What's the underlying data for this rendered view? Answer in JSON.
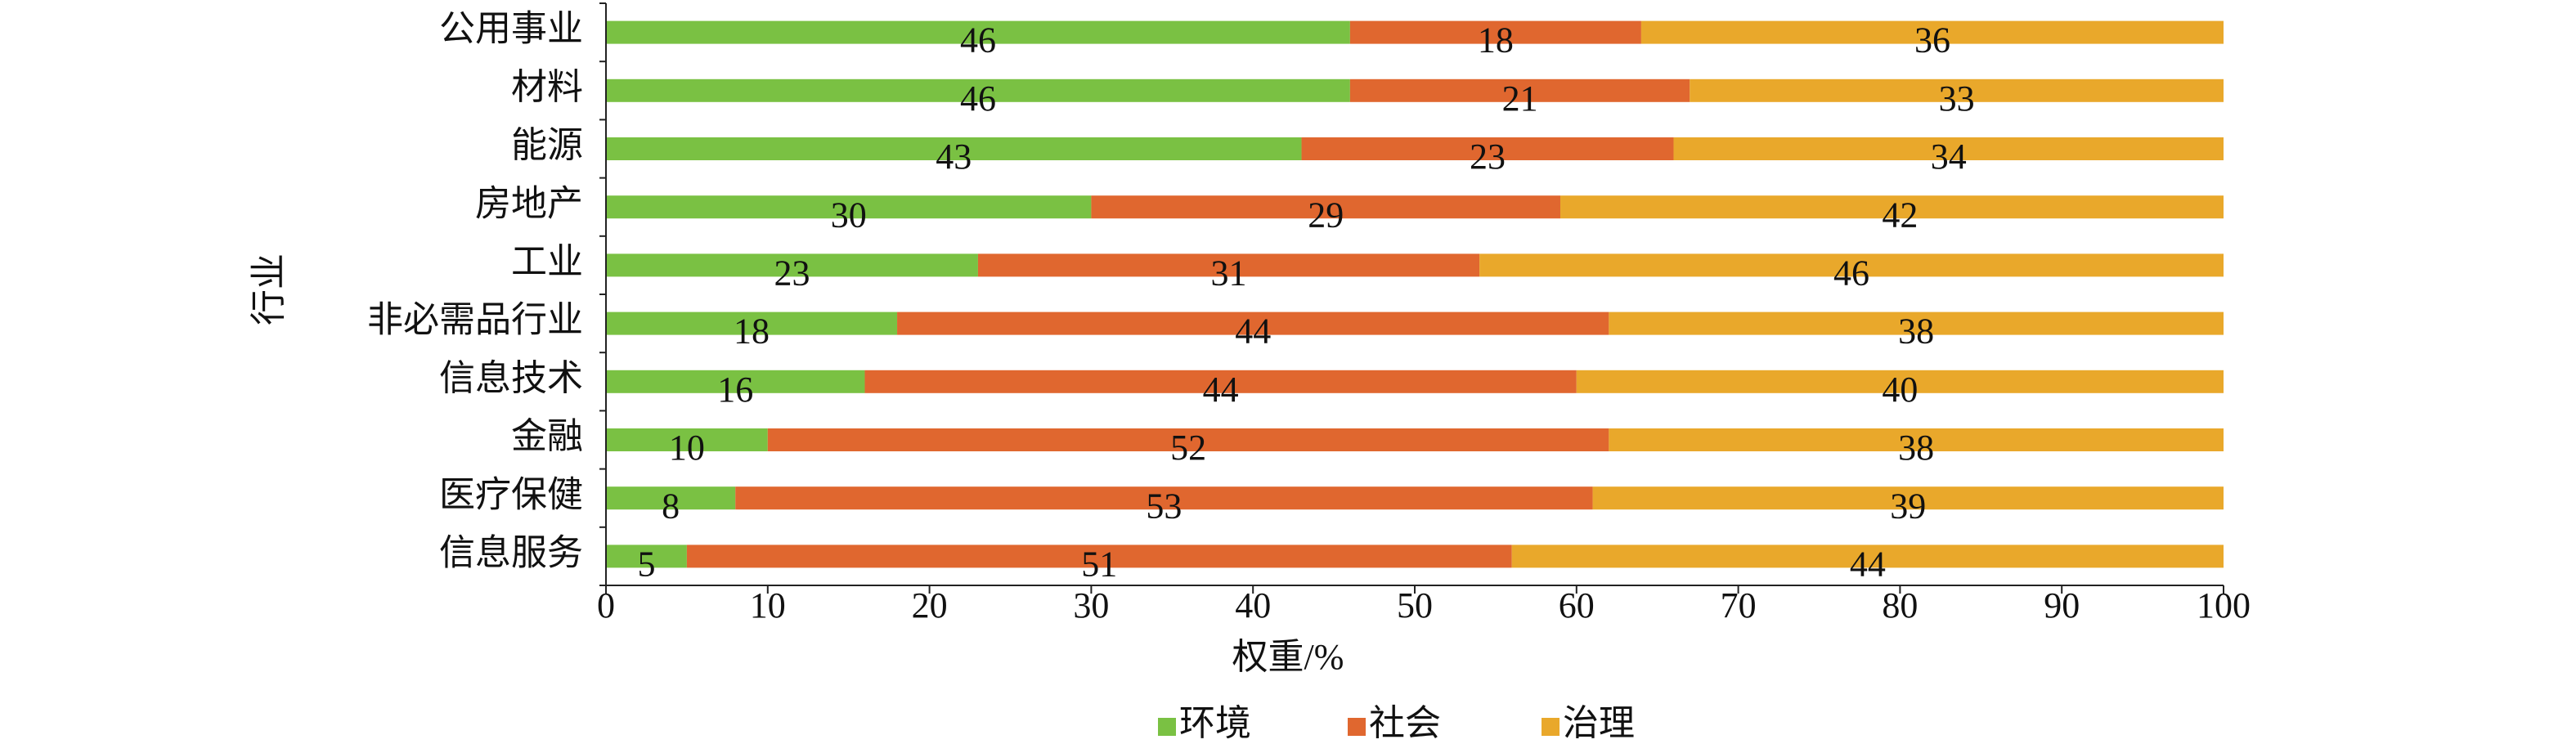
{
  "chart_data": {
    "type": "bar",
    "orientation": "horizontal",
    "stacked": true,
    "x_label": "权重/%",
    "y_label": "行业",
    "categories": [
      "公用事业",
      "材料",
      "能源",
      "房地产",
      "工业",
      "非必需品行业",
      "信息技术",
      "金融",
      "医疗保健",
      "信息服务"
    ],
    "series": [
      {
        "name": "环境",
        "color": "#7ac143",
        "values": [
          46,
          46,
          43,
          30,
          23,
          18,
          16,
          10,
          8,
          5
        ]
      },
      {
        "name": "社会",
        "color": "#e0672f",
        "values": [
          18,
          21,
          23,
          29,
          31,
          44,
          44,
          52,
          53,
          51
        ]
      },
      {
        "name": "治理",
        "color": "#e9a82b",
        "values": [
          36,
          33,
          34,
          42,
          46,
          38,
          40,
          38,
          39,
          44
        ]
      }
    ],
    "xlim": [
      0,
      100
    ],
    "xticks": [
      0,
      10,
      20,
      30,
      40,
      50,
      60,
      70,
      80,
      90,
      100
    ],
    "legend": "bottom"
  }
}
